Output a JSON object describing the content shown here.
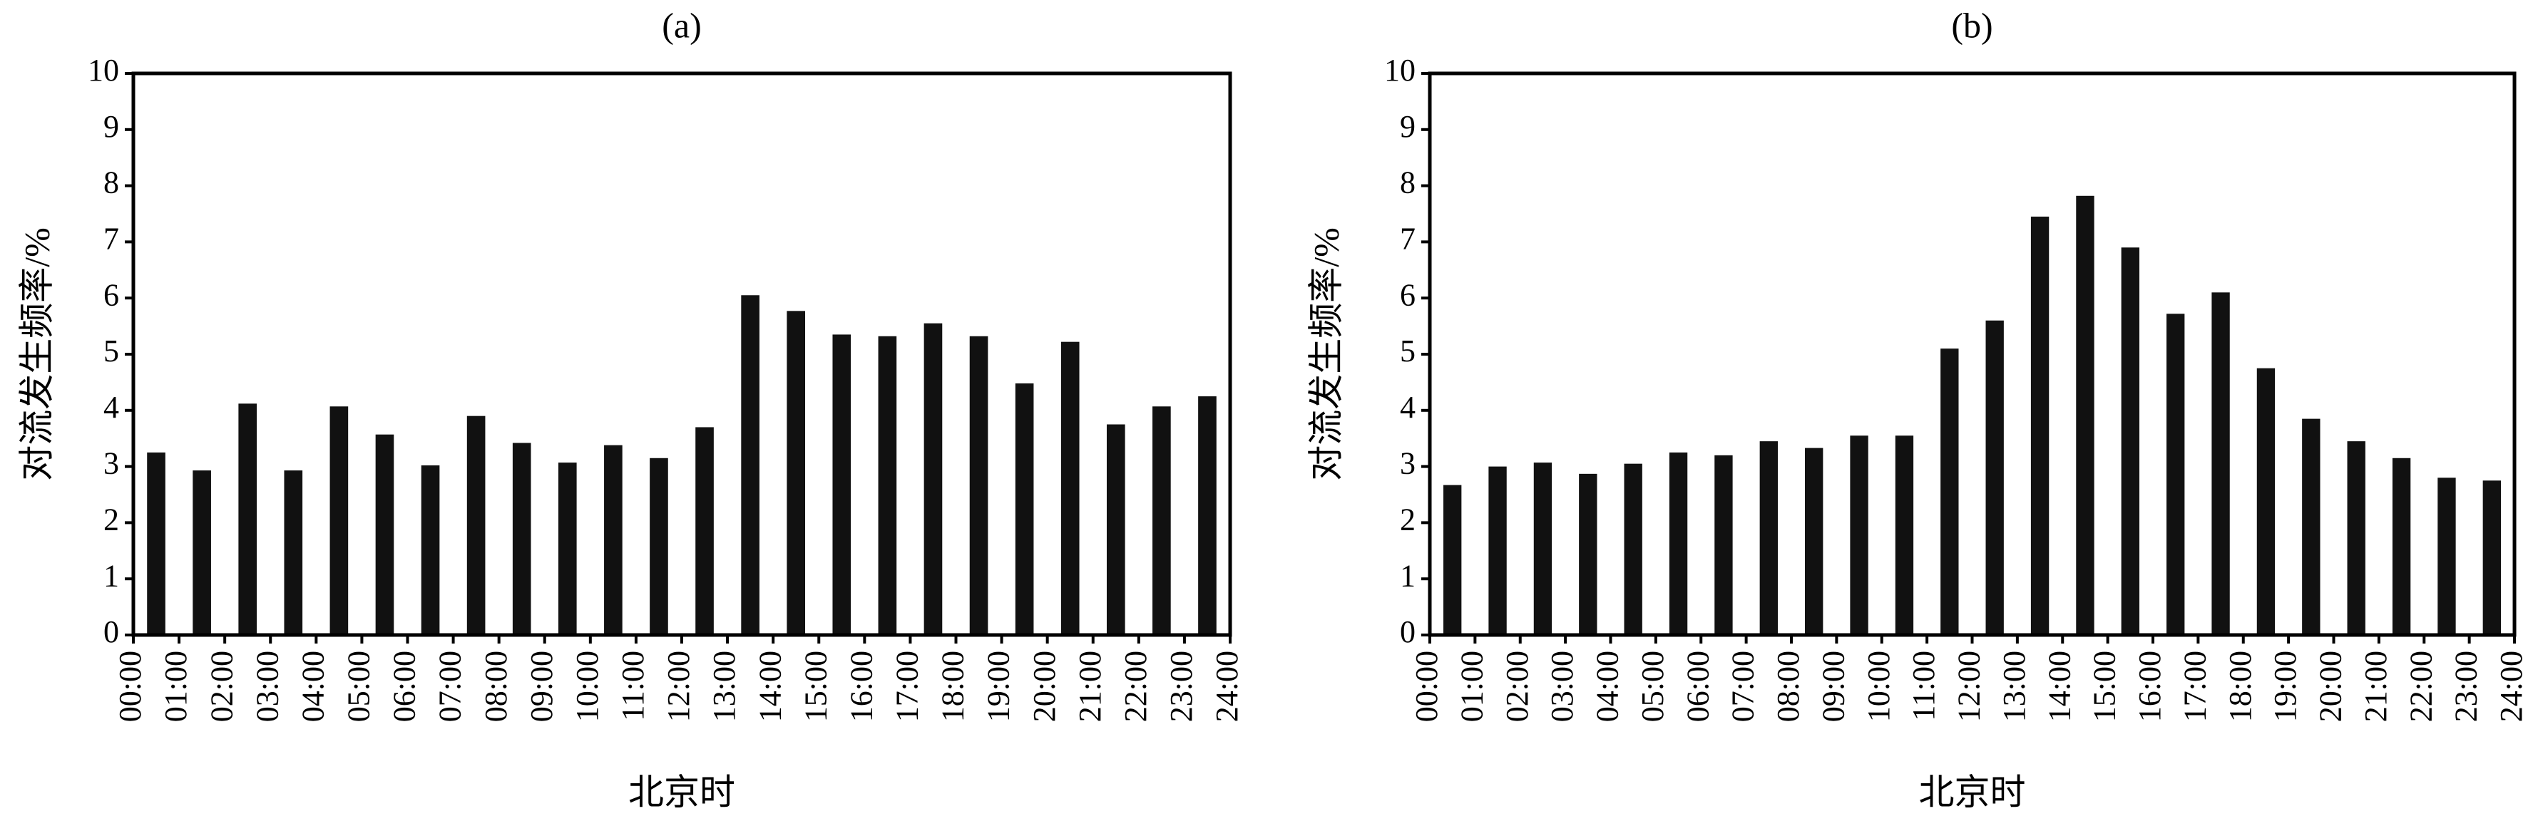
{
  "chart_data": [
    {
      "type": "bar",
      "title": "(a)",
      "x_label": "北京时",
      "y_label": "对流发生频率/%",
      "x": [
        0,
        1,
        2,
        3,
        4,
        5,
        6,
        7,
        8,
        9,
        10,
        11,
        12,
        13,
        14,
        15,
        16,
        17,
        18,
        19,
        20,
        21,
        22,
        23
      ],
      "values": [
        3.25,
        2.93,
        4.12,
        2.93,
        4.07,
        3.57,
        3.02,
        3.9,
        3.42,
        3.07,
        3.38,
        3.15,
        3.7,
        6.05,
        5.77,
        5.35,
        5.32,
        5.55,
        5.32,
        4.48,
        5.22,
        3.75,
        4.07,
        4.25
      ],
      "color": "#111111",
      "xlim": [
        0,
        24
      ],
      "xticks": [
        {
          "value": 0,
          "label": "00:00"
        },
        {
          "value": 1,
          "label": "01:00"
        },
        {
          "value": 2,
          "label": "02:00"
        },
        {
          "value": 3,
          "label": "03:00"
        },
        {
          "value": 4,
          "label": "04:00"
        },
        {
          "value": 5,
          "label": "05:00"
        },
        {
          "value": 6,
          "label": "06:00"
        },
        {
          "value": 7,
          "label": "07:00"
        },
        {
          "value": 8,
          "label": "08:00"
        },
        {
          "value": 9,
          "label": "09:00"
        },
        {
          "value": 10,
          "label": "10:00"
        },
        {
          "value": 11,
          "label": "11:00"
        },
        {
          "value": 12,
          "label": "12:00"
        },
        {
          "value": 13,
          "label": "13:00"
        },
        {
          "value": 14,
          "label": "14:00"
        },
        {
          "value": 15,
          "label": "15:00"
        },
        {
          "value": 16,
          "label": "16:00"
        },
        {
          "value": 17,
          "label": "17:00"
        },
        {
          "value": 18,
          "label": "18:00"
        },
        {
          "value": 19,
          "label": "19:00"
        },
        {
          "value": 20,
          "label": "20:00"
        },
        {
          "value": 21,
          "label": "21:00"
        },
        {
          "value": 22,
          "label": "22:00"
        },
        {
          "value": 23,
          "label": "23:00"
        },
        {
          "value": 24,
          "label": "24:00"
        }
      ],
      "ylim": [
        0,
        10
      ],
      "yticks": [
        0,
        1,
        2,
        3,
        4,
        5,
        6,
        7,
        8,
        9,
        10
      ]
    },
    {
      "type": "bar",
      "title": "(b)",
      "x_label": "北京时",
      "y_label": "对流发生频率/%",
      "x": [
        0,
        1,
        2,
        3,
        4,
        5,
        6,
        7,
        8,
        9,
        10,
        11,
        12,
        13,
        14,
        15,
        16,
        17,
        18,
        19,
        20,
        21,
        22,
        23
      ],
      "values": [
        2.67,
        3.0,
        3.07,
        2.87,
        3.05,
        3.25,
        3.2,
        3.45,
        3.33,
        3.55,
        3.55,
        5.1,
        5.6,
        7.45,
        7.82,
        6.9,
        5.72,
        6.1,
        4.75,
        3.85,
        3.45,
        3.15,
        2.8,
        2.75
      ],
      "color": "#111111",
      "xlim": [
        0,
        24
      ],
      "xticks": [
        {
          "value": 0,
          "label": "00:00"
        },
        {
          "value": 1,
          "label": "01:00"
        },
        {
          "value": 2,
          "label": "02:00"
        },
        {
          "value": 3,
          "label": "03:00"
        },
        {
          "value": 4,
          "label": "04:00"
        },
        {
          "value": 5,
          "label": "05:00"
        },
        {
          "value": 6,
          "label": "06:00"
        },
        {
          "value": 7,
          "label": "07:00"
        },
        {
          "value": 8,
          "label": "08:00"
        },
        {
          "value": 9,
          "label": "09:00"
        },
        {
          "value": 10,
          "label": "10:00"
        },
        {
          "value": 11,
          "label": "11:00"
        },
        {
          "value": 12,
          "label": "12:00"
        },
        {
          "value": 13,
          "label": "13:00"
        },
        {
          "value": 14,
          "label": "14:00"
        },
        {
          "value": 15,
          "label": "15:00"
        },
        {
          "value": 16,
          "label": "16:00"
        },
        {
          "value": 17,
          "label": "17:00"
        },
        {
          "value": 18,
          "label": "18:00"
        },
        {
          "value": 19,
          "label": "19:00"
        },
        {
          "value": 20,
          "label": "20:00"
        },
        {
          "value": 21,
          "label": "21:00"
        },
        {
          "value": 22,
          "label": "22:00"
        },
        {
          "value": 23,
          "label": "23:00"
        },
        {
          "value": 24,
          "label": "24:00"
        }
      ],
      "ylim": [
        0,
        10
      ],
      "yticks": [
        0,
        1,
        2,
        3,
        4,
        5,
        6,
        7,
        8,
        9,
        10
      ]
    }
  ]
}
